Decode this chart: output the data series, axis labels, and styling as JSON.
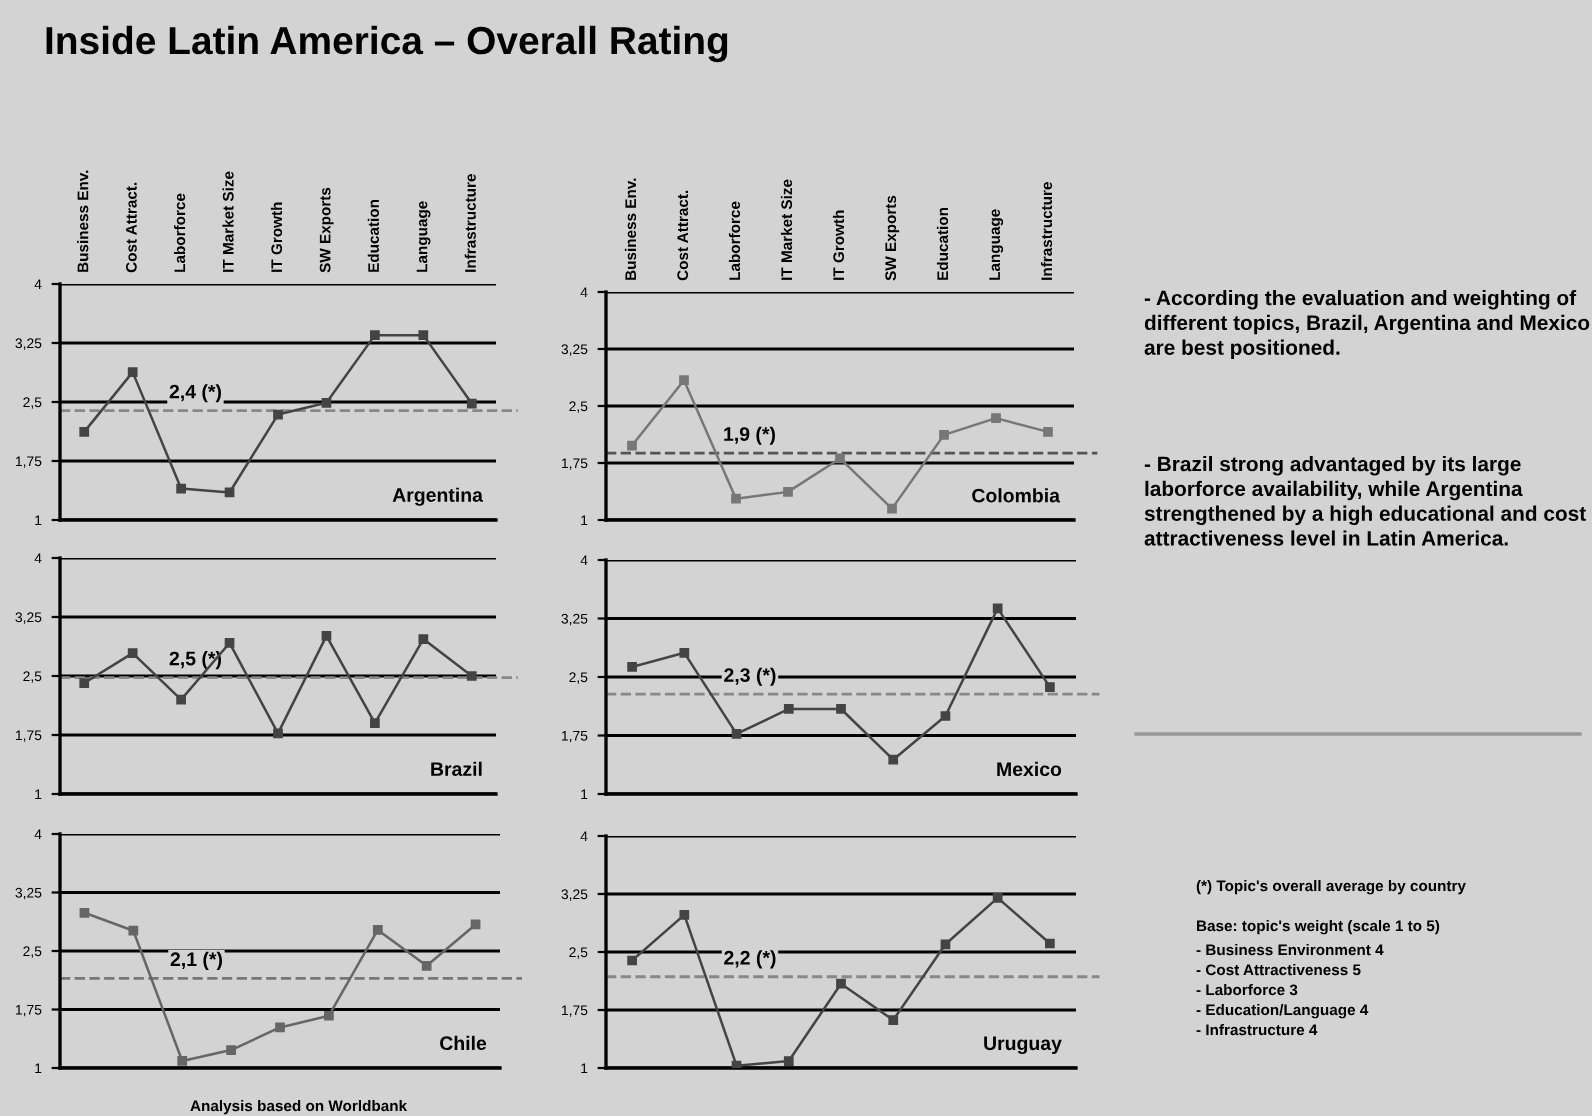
{
  "chart_data": [
    {
      "type": "other",
      "title": "Inside Latin America – Overall Rating",
      "annotations": [
        "- According the evaluation and weighting of different topics, Brazil, Argentina and Mexico are best positioned.",
        "- Brazil strong advantaged by its large laborforce availability, while Argentina strengthened by a high educational and cost attractiveness level in Latin America.",
        "(*) Topic's overall average by country",
        "Base: topic's weight (scale 1 to 5)",
        "- Business Environment 4",
        "- Cost Attractiveness 5",
        "- Laborforce 3",
        "- Education/Language 4",
        "- Infrastructure 4",
        "Analysis based on Worldbank"
      ]
    },
    {
      "type": "line",
      "title": "Argentina",
      "grid": true,
      "marker": "square",
      "tick_labels": "xy",
      "categories": [
        "Business Env.",
        "Cost Attract.",
        "Laborforce",
        "IT Market Size",
        "IT Growth",
        "SW Exports",
        "Education",
        "Language",
        "Infrastructure"
      ],
      "ylim": [
        1,
        4
      ],
      "yticks": [
        1,
        {
          "value": 1.75,
          "label": "1,75"
        },
        {
          "value": 2.5,
          "label": "2,5"
        },
        {
          "value": 3.25,
          "label": "3,25"
        },
        4
      ],
      "series": [
        {
          "color": "#444444",
          "values": [
            2.12,
            2.88,
            1.4,
            1.35,
            2.34,
            2.49,
            3.35,
            3.35,
            2.48
          ]
        }
      ],
      "ref_lines": [
        {
          "axis": "y",
          "value": 2.39,
          "label": "2,4 (*)",
          "color": "#888888",
          "line_style": "dashed"
        }
      ]
    },
    {
      "type": "line",
      "title": "Colombia",
      "grid": true,
      "marker": "square",
      "tick_labels": "xy",
      "categories": [
        "Business Env.",
        "Cost Attract.",
        "Laborforce",
        "IT Market Size",
        "IT Growth",
        "SW Exports",
        "Education",
        "Language",
        "Infrastructure"
      ],
      "ylim": [
        1,
        4
      ],
      "yticks": [
        1,
        {
          "value": 1.75,
          "label": "1,75"
        },
        {
          "value": 2.5,
          "label": "2,5"
        },
        {
          "value": 3.25,
          "label": "3,25"
        },
        4
      ],
      "series": [
        {
          "color": "#777777",
          "values": [
            1.98,
            2.84,
            1.28,
            1.37,
            1.81,
            1.15,
            2.12,
            2.34,
            2.16
          ]
        }
      ],
      "ref_lines": [
        {
          "axis": "y",
          "value": 1.88,
          "label": "1,9 (*)",
          "color": "#555555",
          "line_style": "dashed"
        }
      ]
    },
    {
      "type": "line",
      "title": "Brazil",
      "grid": true,
      "marker": "square",
      "tick_labels": "y",
      "categories": [
        null,
        null,
        null,
        null,
        null,
        null,
        null,
        null,
        null
      ],
      "ylim": [
        1,
        4
      ],
      "yticks": [
        1,
        {
          "value": 1.75,
          "label": "1,75"
        },
        {
          "value": 2.5,
          "label": "2,5"
        },
        {
          "value": 3.25,
          "label": "3,25"
        },
        4
      ],
      "series": [
        {
          "color": "#444444",
          "values": [
            2.41,
            2.79,
            2.2,
            2.92,
            1.77,
            3.01,
            1.9,
            2.97,
            2.5
          ]
        }
      ],
      "ref_lines": [
        {
          "axis": "y",
          "value": 2.48,
          "label": "2,5 (*)",
          "color": "#888888",
          "line_style": "dashed"
        }
      ]
    },
    {
      "type": "line",
      "title": "Mexico",
      "grid": true,
      "marker": "square",
      "tick_labels": "y",
      "categories": [
        null,
        null,
        null,
        null,
        null,
        null,
        null,
        null,
        null
      ],
      "ylim": [
        1,
        4
      ],
      "yticks": [
        1,
        {
          "value": 1.75,
          "label": "1,75"
        },
        {
          "value": 2.5,
          "label": "2,5"
        },
        {
          "value": 3.25,
          "label": "3,25"
        },
        4
      ],
      "series": [
        {
          "color": "#444444",
          "values": [
            2.63,
            2.81,
            1.77,
            2.09,
            2.09,
            1.44,
            2.0,
            3.38,
            2.37
          ]
        }
      ],
      "ref_lines": [
        {
          "axis": "y",
          "value": 2.28,
          "label": "2,3 (*)",
          "color": "#888888",
          "line_style": "dashed"
        }
      ]
    },
    {
      "type": "line",
      "title": "Chile",
      "grid": true,
      "marker": "square",
      "tick_labels": "y",
      "categories": [
        null,
        null,
        null,
        null,
        null,
        null,
        null,
        null,
        null
      ],
      "ylim": [
        1,
        4
      ],
      "yticks": [
        1,
        {
          "value": 1.75,
          "label": "1,75"
        },
        {
          "value": 2.5,
          "label": "2,5"
        },
        {
          "value": 3.25,
          "label": "3,25"
        },
        4
      ],
      "series": [
        {
          "color": "#666666",
          "values": [
            2.99,
            2.76,
            1.09,
            1.23,
            1.52,
            1.67,
            2.77,
            2.31,
            2.84
          ]
        }
      ],
      "ref_lines": [
        {
          "axis": "y",
          "value": 2.15,
          "label": "2,1 (*)",
          "color": "#777777",
          "line_style": "dashed"
        }
      ]
    },
    {
      "type": "line",
      "title": "Uruguay",
      "grid": true,
      "marker": "square",
      "tick_labels": "y",
      "categories": [
        null,
        null,
        null,
        null,
        null,
        null,
        null,
        null,
        null
      ],
      "ylim": [
        1,
        4
      ],
      "yticks": [
        1,
        {
          "value": 1.75,
          "label": "1,75"
        },
        {
          "value": 2.5,
          "label": "2,5"
        },
        {
          "value": 3.25,
          "label": "3,25"
        },
        4
      ],
      "series": [
        {
          "color": "#444444",
          "values": [
            2.39,
            2.98,
            1.03,
            1.09,
            2.09,
            1.62,
            2.6,
            3.2,
            2.61
          ]
        }
      ],
      "ref_lines": [
        {
          "axis": "y",
          "value": 2.18,
          "label": "2,2 (*)",
          "color": "#888888",
          "line_style": "dashed"
        }
      ]
    }
  ]
}
